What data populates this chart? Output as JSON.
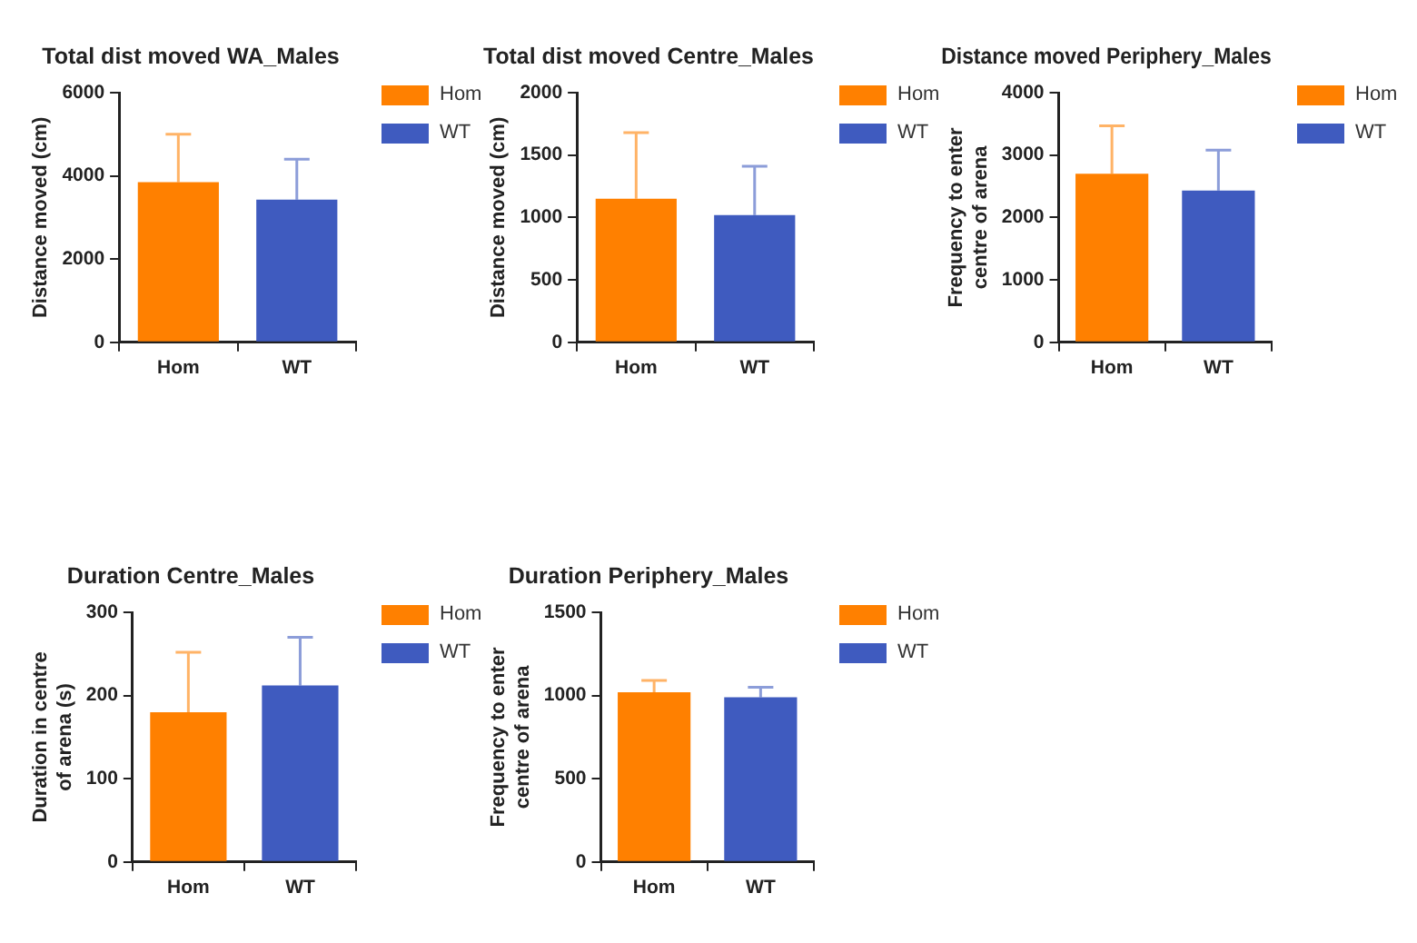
{
  "chart_data": [
    {
      "type": "bar",
      "title": "Total dist moved WA_Males",
      "ylabel": "Distance moved (cm)",
      "categories": [
        "Hom",
        "WT"
      ],
      "series": [
        {
          "name": "Hom",
          "color": "#ff8000",
          "values": [
            3850,
            null
          ],
          "errors": [
            [
              3850,
              5000
            ],
            null
          ]
        },
        {
          "name": "WT",
          "color": "#3f5bbf",
          "values": [
            null,
            3430
          ],
          "errors": [
            null,
            [
              3430,
              4400
            ]
          ]
        }
      ],
      "ylim": [
        0,
        6000
      ],
      "yticks": [
        0,
        2000,
        4000,
        6000
      ],
      "grid": false,
      "legend": "right"
    },
    {
      "type": "bar",
      "title": "Total dist moved Centre_Males",
      "ylabel": "Distance moved (cm)",
      "categories": [
        "Hom",
        "WT"
      ],
      "series": [
        {
          "name": "Hom",
          "color": "#ff8000",
          "values": [
            1150,
            null
          ],
          "errors": [
            [
              1150,
              1680
            ],
            null
          ]
        },
        {
          "name": "WT",
          "color": "#3f5bbf",
          "values": [
            null,
            1020
          ],
          "errors": [
            null,
            [
              1020,
              1410
            ]
          ]
        }
      ],
      "ylim": [
        0,
        2000
      ],
      "yticks": [
        0,
        500,
        1000,
        1500,
        2000
      ],
      "grid": false,
      "legend": "right"
    },
    {
      "type": "bar",
      "title": "Distance moved Periphery_Males",
      "ylabel": "Frequency to enter\ncentre of arena",
      "categories": [
        "Hom",
        "WT"
      ],
      "series": [
        {
          "name": "Hom",
          "color": "#ff8000",
          "values": [
            2700,
            null
          ],
          "errors": [
            [
              2700,
              3470
            ],
            null
          ]
        },
        {
          "name": "WT",
          "color": "#3f5bbf",
          "values": [
            null,
            2430
          ],
          "errors": [
            null,
            [
              2430,
              3080
            ]
          ]
        }
      ],
      "ylim": [
        0,
        4000
      ],
      "yticks": [
        0,
        1000,
        2000,
        3000,
        4000
      ],
      "grid": false,
      "legend": "right"
    },
    {
      "type": "bar",
      "title": "Duration Centre_Males",
      "ylabel": "Duration in centre\nof arena (s)",
      "categories": [
        "Hom",
        "WT"
      ],
      "series": [
        {
          "name": "Hom",
          "color": "#ff8000",
          "values": [
            180,
            null
          ],
          "errors": [
            [
              180,
              252
            ],
            null
          ]
        },
        {
          "name": "WT",
          "color": "#3f5bbf",
          "values": [
            null,
            212
          ],
          "errors": [
            null,
            [
              212,
              270
            ]
          ]
        }
      ],
      "ylim": [
        0,
        300
      ],
      "yticks": [
        0,
        100,
        200,
        300
      ],
      "grid": false,
      "legend": "right"
    },
    {
      "type": "bar",
      "title": "Duration Periphery_Males",
      "ylabel": "Frequency to enter\ncentre of arena",
      "categories": [
        "Hom",
        "WT"
      ],
      "series": [
        {
          "name": "Hom",
          "color": "#ff8000",
          "values": [
            1020,
            null
          ],
          "errors": [
            [
              1020,
              1090
            ],
            null
          ]
        },
        {
          "name": "WT",
          "color": "#3f5bbf",
          "values": [
            null,
            990
          ],
          "errors": [
            null,
            [
              990,
              1050
            ]
          ]
        }
      ],
      "ylim": [
        0,
        1500
      ],
      "yticks": [
        0,
        500,
        1000,
        1500
      ],
      "grid": false,
      "legend": "right"
    }
  ]
}
